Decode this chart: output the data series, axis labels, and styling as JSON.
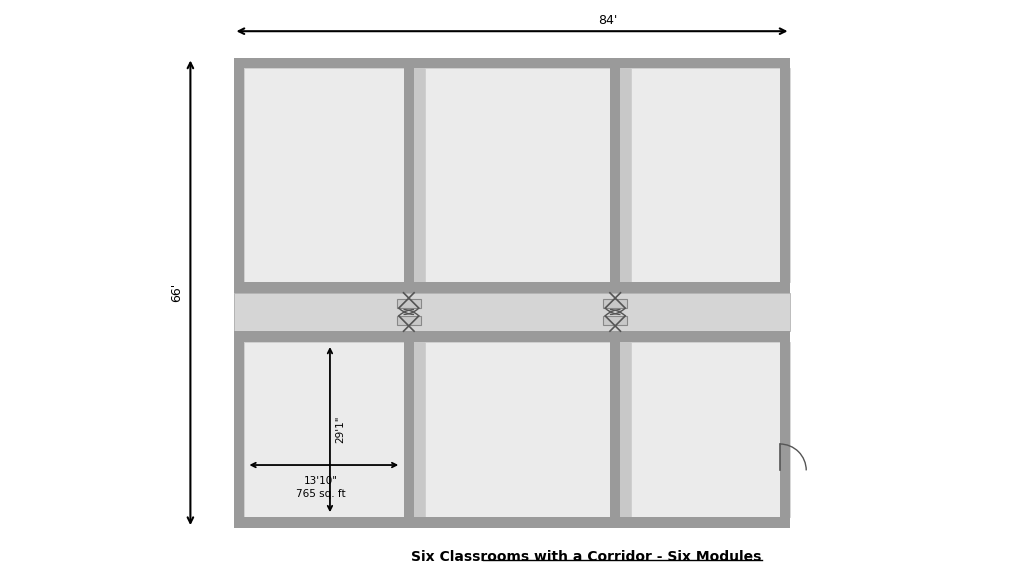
{
  "title": "Six Classrooms with a Corridor - Six Modules",
  "bg_color": "#ffffff",
  "wall_dark": "#555555",
  "wall_mid": "#888888",
  "wall_light": "#aaaaaa",
  "room_fill": "#e0e0e0",
  "room_inner": "#ebebeb",
  "corridor_fill": "#d0d0d0",
  "dim_84": "84'",
  "dim_66": "66'",
  "dim_29_1": "29'1\"",
  "dim_13_10": "13'10\"",
  "dim_sqft": "765 sq. ft",
  "text_color": "#000000",
  "OL": 2.2,
  "OR": 13.8,
  "OT": 10.8,
  "OB": 1.0,
  "CT": 5.9,
  "CB": 5.1,
  "C1": 5.85,
  "C2": 10.15,
  "wt": 0.22
}
